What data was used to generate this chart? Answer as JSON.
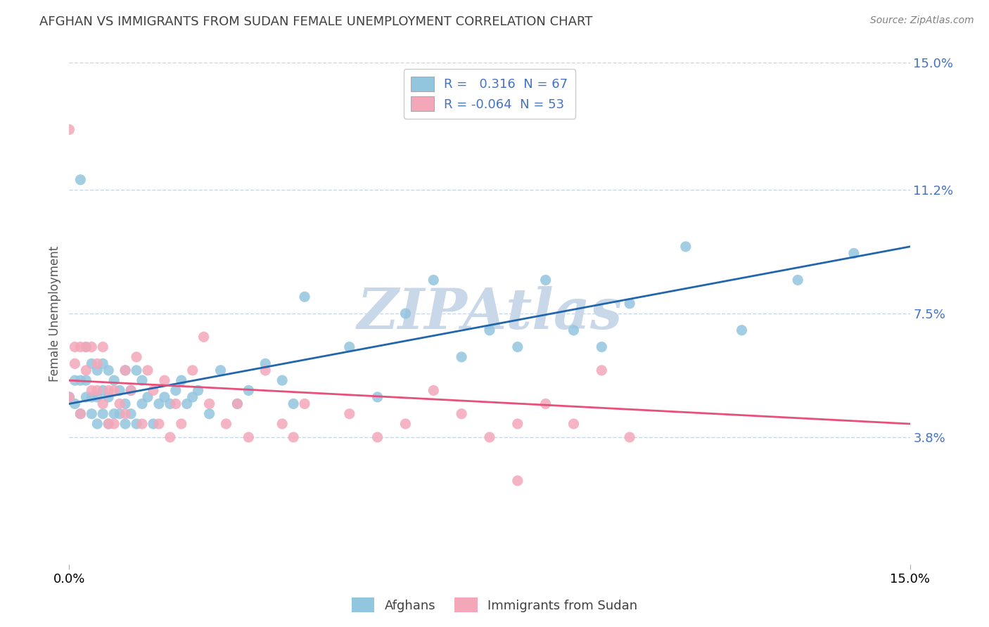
{
  "title": "AFGHAN VS IMMIGRANTS FROM SUDAN FEMALE UNEMPLOYMENT CORRELATION CHART",
  "source": "Source: ZipAtlas.com",
  "ylabel": "Female Unemployment",
  "y_tick_labels_right": [
    "15.0%",
    "11.2%",
    "7.5%",
    "3.8%"
  ],
  "y_tick_values_right": [
    0.15,
    0.112,
    0.075,
    0.038
  ],
  "legend_label1": "R =   0.316  N = 67",
  "legend_label2": "R = -0.064  N = 53",
  "legend_footer1": "Afghans",
  "legend_footer2": "Immigrants from Sudan",
  "color_blue": "#92c5de",
  "color_pink": "#f4a7b9",
  "color_blue_dark": "#2166ac",
  "color_pink_dark": "#e8507a",
  "color_legend_value": "#4472c4",
  "watermark": "ZIPAtlas",
  "watermark_color": "#c8d8e8",
  "xmin": 0.0,
  "xmax": 0.15,
  "ymin": 0.0,
  "ymax": 0.15,
  "blue_scatter_x": [
    0.0,
    0.001,
    0.001,
    0.002,
    0.002,
    0.003,
    0.003,
    0.003,
    0.004,
    0.004,
    0.004,
    0.005,
    0.005,
    0.005,
    0.006,
    0.006,
    0.006,
    0.007,
    0.007,
    0.007,
    0.008,
    0.008,
    0.009,
    0.009,
    0.01,
    0.01,
    0.01,
    0.011,
    0.011,
    0.012,
    0.012,
    0.013,
    0.013,
    0.014,
    0.015,
    0.016,
    0.017,
    0.018,
    0.019,
    0.02,
    0.021,
    0.022,
    0.023,
    0.025,
    0.027,
    0.03,
    0.032,
    0.035,
    0.038,
    0.04,
    0.042,
    0.05,
    0.055,
    0.06,
    0.065,
    0.07,
    0.075,
    0.08,
    0.085,
    0.09,
    0.095,
    0.1,
    0.11,
    0.12,
    0.13,
    0.14,
    0.002
  ],
  "blue_scatter_y": [
    0.05,
    0.048,
    0.055,
    0.045,
    0.055,
    0.05,
    0.055,
    0.065,
    0.045,
    0.05,
    0.06,
    0.042,
    0.05,
    0.058,
    0.045,
    0.052,
    0.06,
    0.042,
    0.05,
    0.058,
    0.045,
    0.055,
    0.045,
    0.052,
    0.042,
    0.048,
    0.058,
    0.045,
    0.052,
    0.042,
    0.058,
    0.048,
    0.055,
    0.05,
    0.042,
    0.048,
    0.05,
    0.048,
    0.052,
    0.055,
    0.048,
    0.05,
    0.052,
    0.045,
    0.058,
    0.048,
    0.052,
    0.06,
    0.055,
    0.048,
    0.08,
    0.065,
    0.05,
    0.075,
    0.085,
    0.062,
    0.07,
    0.065,
    0.085,
    0.07,
    0.065,
    0.078,
    0.095,
    0.07,
    0.085,
    0.093,
    0.115
  ],
  "pink_scatter_x": [
    0.0,
    0.0,
    0.001,
    0.001,
    0.002,
    0.002,
    0.003,
    0.003,
    0.004,
    0.004,
    0.005,
    0.005,
    0.006,
    0.006,
    0.007,
    0.007,
    0.008,
    0.008,
    0.009,
    0.01,
    0.01,
    0.011,
    0.012,
    0.013,
    0.014,
    0.015,
    0.016,
    0.017,
    0.018,
    0.019,
    0.02,
    0.022,
    0.024,
    0.025,
    0.028,
    0.03,
    0.032,
    0.035,
    0.038,
    0.04,
    0.042,
    0.05,
    0.055,
    0.06,
    0.065,
    0.07,
    0.075,
    0.08,
    0.085,
    0.09,
    0.095,
    0.1,
    0.08
  ],
  "pink_scatter_y": [
    0.13,
    0.05,
    0.06,
    0.065,
    0.045,
    0.065,
    0.058,
    0.065,
    0.052,
    0.065,
    0.052,
    0.06,
    0.048,
    0.065,
    0.052,
    0.042,
    0.052,
    0.042,
    0.048,
    0.045,
    0.058,
    0.052,
    0.062,
    0.042,
    0.058,
    0.052,
    0.042,
    0.055,
    0.038,
    0.048,
    0.042,
    0.058,
    0.068,
    0.048,
    0.042,
    0.048,
    0.038,
    0.058,
    0.042,
    0.038,
    0.048,
    0.045,
    0.038,
    0.042,
    0.052,
    0.045,
    0.038,
    0.042,
    0.048,
    0.042,
    0.058,
    0.038,
    0.025
  ],
  "blue_line_x": [
    0.0,
    0.15
  ],
  "blue_line_y": [
    0.048,
    0.095
  ],
  "pink_line_x": [
    0.0,
    0.15
  ],
  "pink_line_y": [
    0.055,
    0.042
  ],
  "grid_color": "#c8d8e4",
  "right_axis_color": "#4472c4",
  "background_color": "#ffffff",
  "title_color": "#404040",
  "source_color": "#808080"
}
